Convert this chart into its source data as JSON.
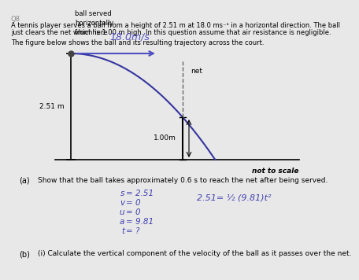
{
  "bg_color": "#e8e8e8",
  "text_color": "#000000",
  "title_line1": "A tennis player serves a ball from a height of 2.51 m at 18.0 ms⁻¹ in a horizontal direction. The ball",
  "title_line2": "just clears the net which is 1.00 m high. In this question assume that air resistance is negligible.",
  "subtitle": "The figure below shows the ball and its resulting trajectory across the court.",
  "ball_label": "ball served\nhorizontally\nfrom here",
  "speed_label": "18.0m/s",
  "net_label": "net",
  "height_label_left": "2.51 m",
  "height_label_net": "1.00m",
  "not_to_scale": "not to scale",
  "part_a_label": "(a)",
  "part_a_text": "Show that the ball takes approximately 0.6 s to reach the net after being served.",
  "workings": [
    [
      "s",
      "2.51"
    ],
    [
      "v",
      "0"
    ],
    [
      "u",
      "0"
    ],
    [
      "a",
      "9.81"
    ],
    [
      "t",
      "?"
    ]
  ],
  "part_a_eq": "2.51= ½ (9.81)t²",
  "part_b_label": "(b)",
  "part_b_text": "(i) Calculate the vertical component of the velocity of the ball as it passes over the net.",
  "arrow_color": "#5050c0",
  "traj_color": "#3535a0",
  "work_color": "#4040b0",
  "line_color": "#000000",
  "dashed_color": "#666666"
}
